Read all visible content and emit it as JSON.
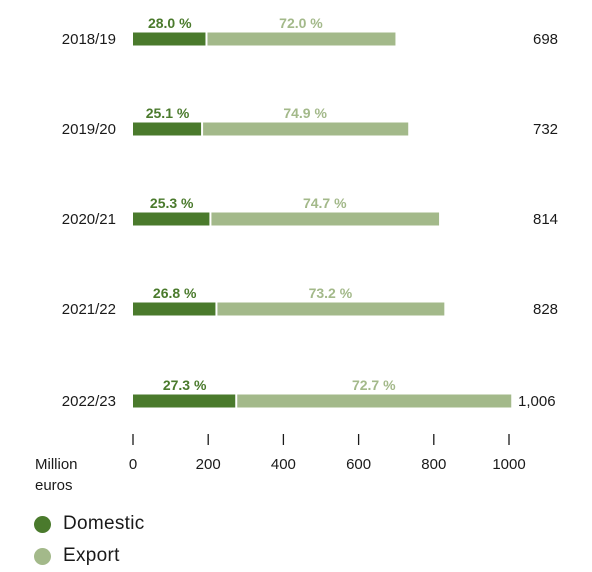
{
  "chart_data": {
    "type": "bar",
    "stacked": true,
    "orientation": "horizontal",
    "categories": [
      "2018/19",
      "2019/20",
      "2020/21",
      "2021/22",
      "2022/23"
    ],
    "series": [
      {
        "name": "Domestic",
        "color": "#4a7a2c",
        "share_labels": [
          "28.0 %",
          "25.1 %",
          "25.3 %",
          "26.8 %",
          "27.3 %"
        ],
        "values": [
          195.4,
          183.7,
          205.9,
          221.9,
          274.6
        ]
      },
      {
        "name": "Export",
        "color": "#a3b98a",
        "share_labels": [
          "72.0 %",
          "74.9 %",
          "74.7 %",
          "73.2 %",
          "72.7 %"
        ],
        "values": [
          502.6,
          548.3,
          608.1,
          606.1,
          731.4
        ]
      }
    ],
    "totals": [
      "698",
      "732",
      "814",
      "828",
      "1,006"
    ],
    "x_ticks": [
      "0",
      "200",
      "400",
      "600",
      "800",
      "1000"
    ],
    "xlim": [
      0,
      1000
    ],
    "xlabel": "Million\neuros",
    "grid": false,
    "legend_position": "bottom-left"
  },
  "legend": [
    {
      "label": "Domestic",
      "color": "#4a7a2c"
    },
    {
      "label": "Export",
      "color": "#a3b98a"
    }
  ]
}
